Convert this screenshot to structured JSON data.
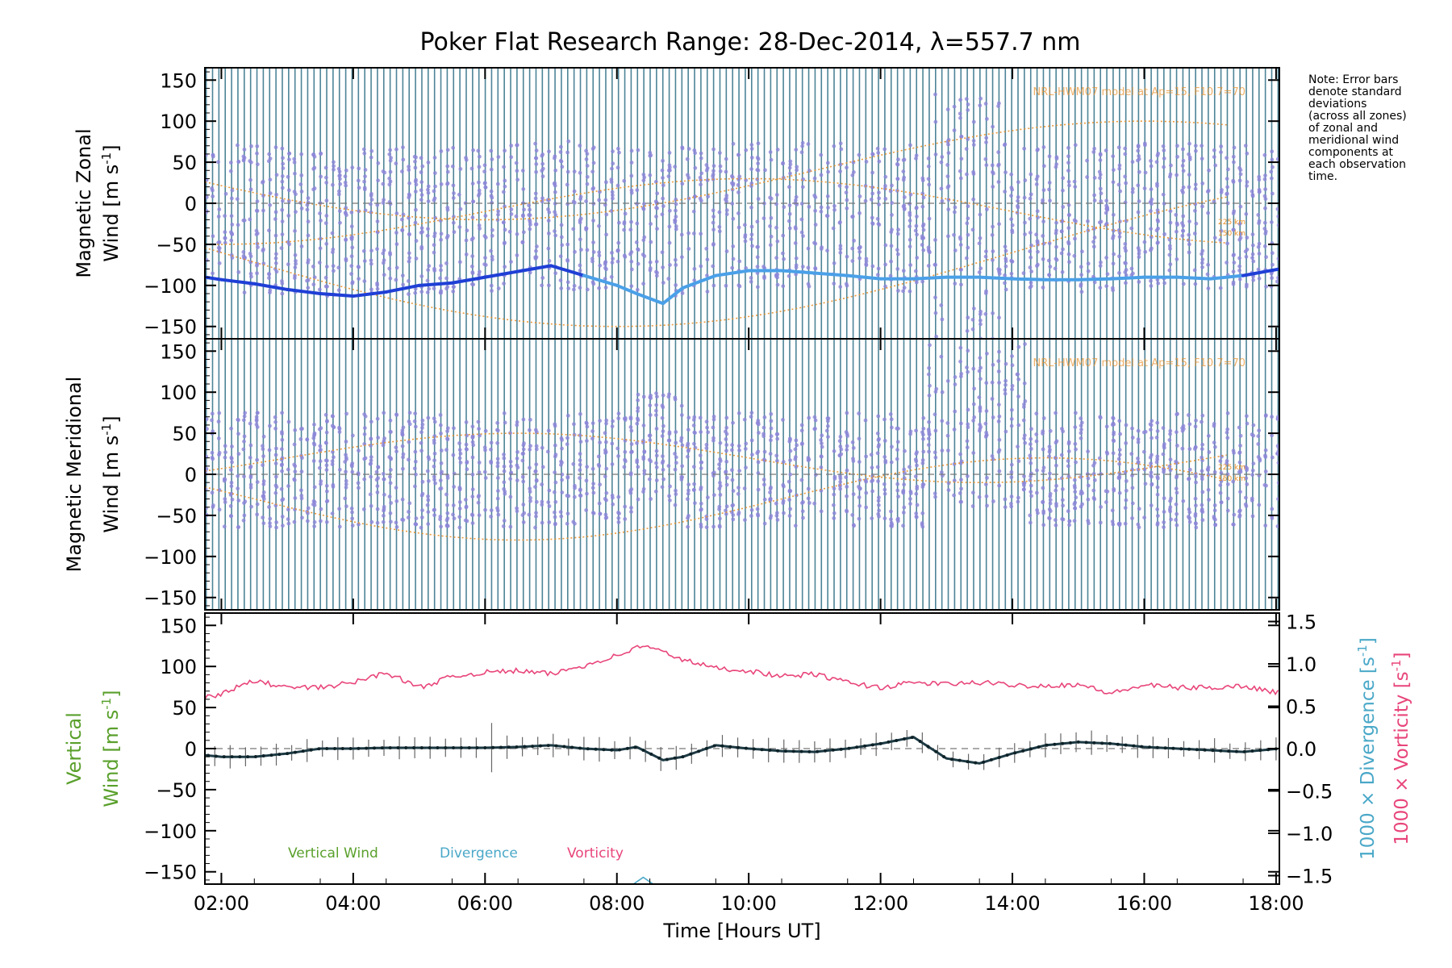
{
  "title": "Poker Flat Research Range: 28-Dec-2014, λ=557.7 nm",
  "note": [
    "Note: Error bars",
    "denote standard",
    "deviations",
    "(across all zones)",
    "of zonal and",
    "meridional wind",
    "components at",
    "each observation",
    "time."
  ],
  "model_label": "NRL-HWM07 model at Ap=15, F10.7=70",
  "model_height_labels": [
    "225 km",
    "150 km"
  ],
  "xaxis": {
    "label": "Time [Hours UT]",
    "range": [
      1.75,
      18.05
    ],
    "ticks": [
      2,
      4,
      6,
      8,
      10,
      12,
      14,
      16,
      18
    ],
    "tick_labels": [
      "02:00",
      "04:00",
      "06:00",
      "08:00",
      "10:00",
      "12:00",
      "14:00",
      "16:00",
      "18:00"
    ]
  },
  "panels": {
    "zonal": {
      "ylabel_line1": "Magnetic Zonal",
      "ylabel_line2": "Wind [m s",
      "ylabel_sup": "-1",
      "ylabel_close": "]"
    },
    "meridional": {
      "ylabel_line1": "Magnetic Meridional",
      "ylabel_line2": "Wind [m s",
      "ylabel_sup": "-1",
      "ylabel_close": "]"
    },
    "vertical": {
      "ylabel_line1": "Vertical",
      "ylabel_line2": "Wind [m s",
      "ylabel_sup": "-1",
      "ylabel_close": "]",
      "right_label_div": "1000 × Divergence [s",
      "right_label_vort": "1000 × Vorticity [s",
      "right_sup": "-1",
      "right_close": "]",
      "legend": [
        "Vertical Wind",
        "Divergence",
        "Vorticity"
      ]
    }
  },
  "colors": {
    "vertical": "#5aa02c",
    "divergence": "#4aa8c8",
    "vorticity": "#e8457a",
    "model": "#e8902a",
    "zonal_mean_dark": "#1f3fd6",
    "zonal_mean_light": "#4aa0e8",
    "samples": "#8c86d8",
    "grid_lines": "#2f6f86"
  },
  "chart_data": [
    {
      "type": "scatter",
      "title": "Magnetic Zonal Wind",
      "ylabel": "Magnetic Zonal Wind [m s-1]",
      "ylim": [
        -165,
        165
      ],
      "yticks": [
        -150,
        -100,
        -50,
        0,
        50,
        100,
        150
      ],
      "series": [
        {
          "x": [
            1.75,
            2.0,
            2.5,
            3.0,
            3.5,
            4.0,
            4.5,
            5.0,
            5.5,
            6.0,
            6.5,
            7.0,
            7.5,
            8.0,
            8.3,
            8.7,
            9.0,
            9.5,
            10.0,
            10.5,
            11.0,
            11.5,
            12.0,
            12.5,
            13.0,
            13.5,
            14.0,
            14.5,
            15.0,
            15.5,
            16.0,
            16.5,
            17.0,
            17.5,
            18.05
          ],
          "y": [
            -90,
            -93,
            -98,
            -105,
            -110,
            -113,
            -108,
            -100,
            -97,
            -90,
            -83,
            -76,
            -88,
            -100,
            -110,
            -122,
            -103,
            -88,
            -82,
            -82,
            -85,
            -88,
            -92,
            -92,
            -90,
            -90,
            -92,
            -93,
            -93,
            -92,
            -90,
            -90,
            -92,
            -88,
            -80
          ]
        }
      ]
    },
    {
      "type": "scatter",
      "title": "Magnetic Meridional Wind",
      "ylabel": "Magnetic Meridional Wind [m s-1]",
      "ylim": [
        -165,
        165
      ],
      "yticks": [
        -150,
        -100,
        -50,
        0,
        50,
        100,
        150
      ]
    },
    {
      "type": "line",
      "title": "Vertical Wind, Divergence, Vorticity",
      "ylabel": "Vertical Wind [m s-1]",
      "ylim": [
        -165,
        165
      ],
      "yticks": [
        -150,
        -100,
        -50,
        0,
        50,
        100,
        150
      ],
      "y2label": "1000 x Divergence [s-1] / 1000 x Vorticity [s-1]",
      "y2lim": [
        -1.6,
        1.6
      ],
      "y2ticks": [
        -1.5,
        -1.0,
        -0.5,
        0.0,
        0.5,
        1.0,
        1.5
      ],
      "series": [
        {
          "name": "Vertical Wind",
          "x": [
            1.75,
            2.0,
            2.5,
            3.0,
            3.5,
            4.0,
            4.5,
            5.0,
            5.5,
            6.0,
            6.5,
            7.0,
            7.5,
            8.0,
            8.3,
            8.7,
            9.0,
            9.5,
            10.0,
            10.5,
            11.0,
            11.5,
            12.0,
            12.5,
            13.0,
            13.5,
            14.0,
            14.5,
            15.0,
            15.5,
            16.0,
            16.5,
            17.0,
            17.5,
            18.05
          ],
          "y": [
            -8,
            -10,
            -10,
            -6,
            0,
            0,
            1,
            1,
            1,
            1,
            2,
            4,
            0,
            -2,
            2,
            -14,
            -10,
            4,
            0,
            -3,
            -4,
            0,
            6,
            14,
            -12,
            -18,
            -6,
            4,
            8,
            6,
            2,
            0,
            -2,
            -4,
            0
          ]
        },
        {
          "name": "Vorticity",
          "axis": "right",
          "x": [
            1.75,
            2.0,
            2.5,
            3.0,
            3.5,
            4.0,
            4.5,
            5.0,
            5.5,
            6.0,
            6.5,
            7.0,
            7.5,
            8.0,
            8.4,
            8.7,
            9.0,
            9.5,
            10.0,
            10.5,
            11.0,
            11.5,
            12.0,
            12.5,
            13.0,
            13.5,
            14.0,
            14.5,
            15.0,
            15.5,
            16.0,
            16.5,
            17.0,
            17.5,
            18.05
          ],
          "y": [
            0.6,
            0.65,
            0.8,
            0.72,
            0.72,
            0.78,
            0.9,
            0.72,
            0.85,
            0.9,
            0.92,
            0.88,
            0.98,
            1.1,
            1.22,
            1.14,
            1.05,
            0.95,
            0.92,
            0.85,
            0.88,
            0.78,
            0.72,
            0.78,
            0.76,
            0.78,
            0.75,
            0.74,
            0.76,
            0.65,
            0.75,
            0.72,
            0.72,
            0.74,
            0.66
          ]
        },
        {
          "name": "Divergence",
          "axis": "right",
          "x": [
            8.25,
            8.4,
            8.55
          ],
          "y": [
            -1.6,
            -1.52,
            -1.6
          ]
        }
      ]
    }
  ]
}
